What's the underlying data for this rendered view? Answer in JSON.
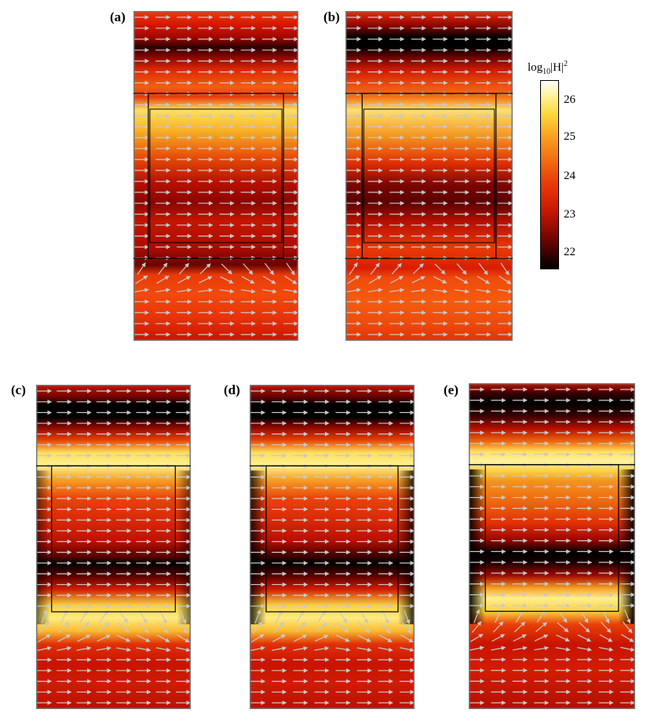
{
  "figure": {
    "panels": [
      {
        "id": "a",
        "label": "(a)",
        "variant": "a"
      },
      {
        "id": "b",
        "label": "(b)",
        "variant": "b"
      },
      {
        "id": "c",
        "label": "(c)",
        "variant": "c"
      },
      {
        "id": "d",
        "label": "(d)",
        "variant": "d"
      },
      {
        "id": "e",
        "label": "(e)",
        "variant": "e"
      }
    ]
  },
  "colorbar": {
    "label_prefix": "log",
    "label_sub": "10",
    "label_main": "|H|",
    "label_sup": "2",
    "ticks": [
      "26",
      "25",
      "24",
      "23",
      "22"
    ],
    "range": [
      21.6,
      26.4
    ],
    "colormap": "hot",
    "colors": [
      "#000000",
      "#8a0a00",
      "#e83a08",
      "#f7a020",
      "#fff39a",
      "#ffffff"
    ]
  },
  "colors": {
    "arrow": "#c8c8c8",
    "outline": "#000000"
  }
}
